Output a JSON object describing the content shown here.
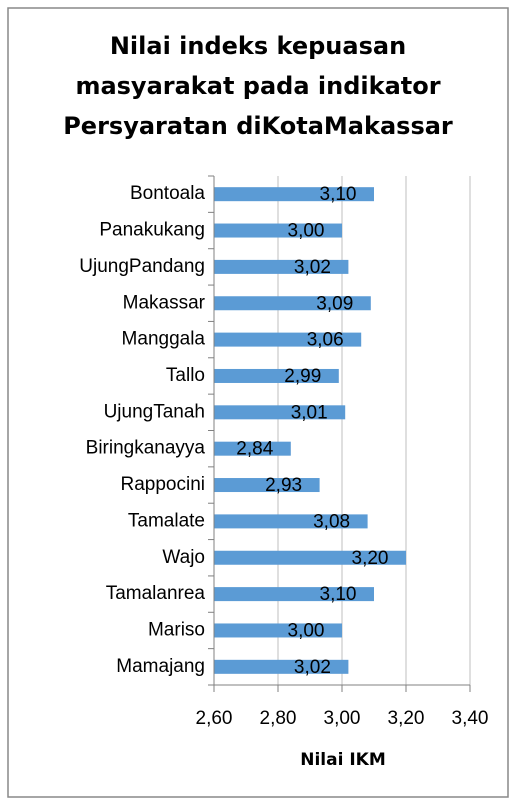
{
  "chart_data": {
    "type": "bar",
    "orientation": "horizontal",
    "title": [
      "Nilai indeks kepuasan",
      "masyarakat pada indikator",
      "Persyaratan diKotaMakassar"
    ],
    "categories": [
      "Bontoala",
      "Panakukang",
      "UjungPandang",
      "Makassar",
      "Manggala",
      "Tallo",
      "UjungTanah",
      "Biringkanayya",
      "Rappocini",
      "Tamalate",
      "Wajo",
      "Tamalanrea",
      "Mariso",
      "Mamajang"
    ],
    "values": [
      3.1,
      3.0,
      3.02,
      3.09,
      3.06,
      2.99,
      3.01,
      2.84,
      2.93,
      3.08,
      3.2,
      3.1,
      3.0,
      3.02
    ],
    "value_labels": [
      "3,10",
      "3,00",
      "3,02",
      "3,09",
      "3,06",
      "2,99",
      "3,01",
      "2,84",
      "2,93",
      "3,08",
      "3,20",
      "3,10",
      "3,00",
      "3,02"
    ],
    "color": "#5b9bd5",
    "xlim": [
      2.6,
      3.4
    ],
    "xticks": [
      {
        "value": 2.6,
        "label": "2,60"
      },
      {
        "value": 2.8,
        "label": "2,80"
      },
      {
        "value": 3.0,
        "label": "3,00"
      },
      {
        "value": 3.2,
        "label": "3,20"
      },
      {
        "value": 3.4,
        "label": "3,40"
      }
    ],
    "xlabel": "Nilai IKM",
    "grid": true
  }
}
